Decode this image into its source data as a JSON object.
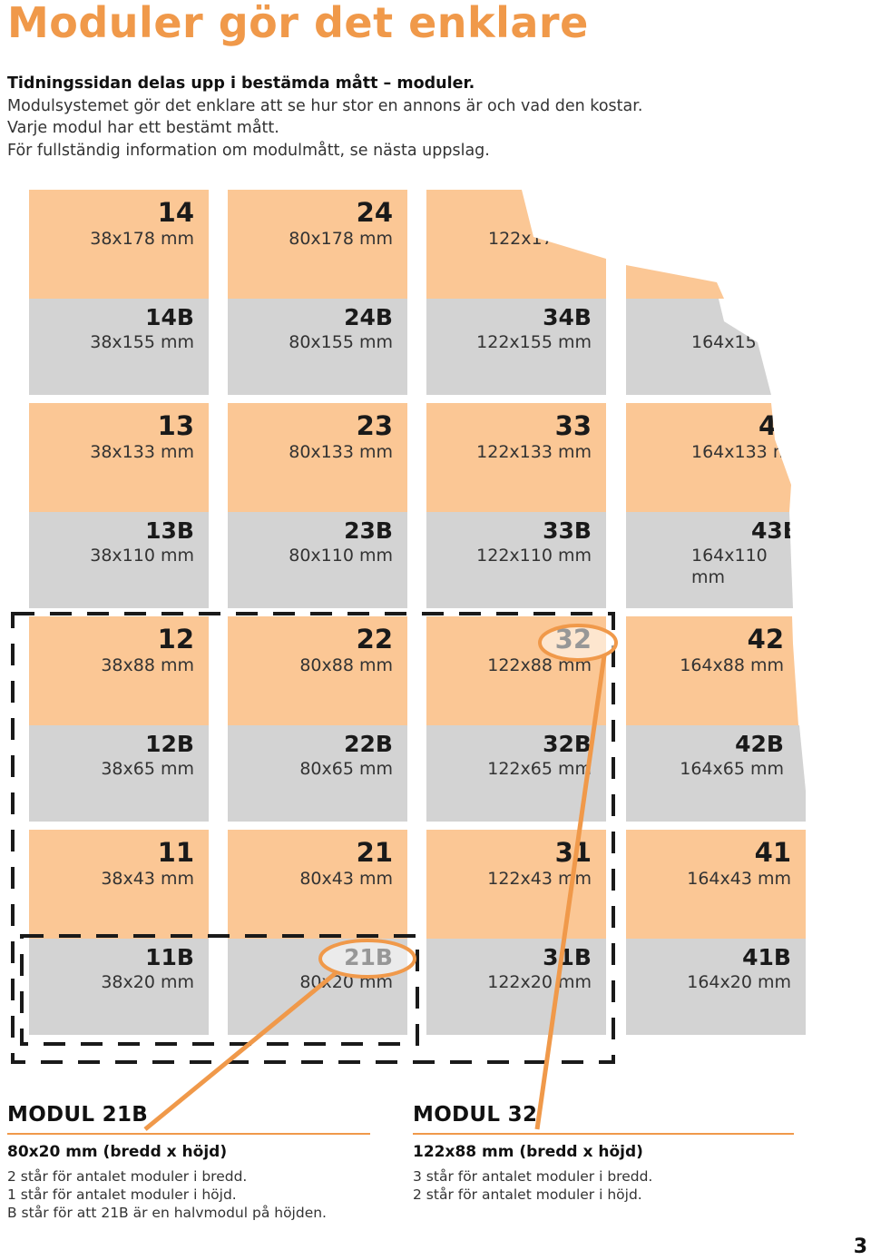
{
  "title": "Moduler gör det enklare",
  "intro": {
    "line1": "Tidningssidan delas upp i bestämda mått – moduler.",
    "line2": "Modulsystemet gör det enklare att se hur stor en annons är och vad den kostar.",
    "line3": "Varje modul har ett bestämt mått.",
    "line4": "För fullständig information om modulmått, se nästa uppslag."
  },
  "grid": {
    "r1": [
      {
        "num": "14",
        "dim": "38x178 mm"
      },
      {
        "num": "24",
        "dim": "80x178 mm"
      },
      {
        "num": "",
        "dim": "122x17"
      }
    ],
    "r1b": [
      {
        "num": "14B",
        "dim": "38x155 mm"
      },
      {
        "num": "24B",
        "dim": "80x155 mm"
      },
      {
        "num": "34B",
        "dim": "122x155 mm"
      },
      {
        "num": "",
        "dim": "164x15"
      }
    ],
    "r2": [
      {
        "num": "13",
        "dim": "38x133 mm"
      },
      {
        "num": "23",
        "dim": "80x133 mm"
      },
      {
        "num": "33",
        "dim": "122x133 mm"
      },
      {
        "num": "4",
        "dim": "164x133 m"
      }
    ],
    "r2b": [
      {
        "num": "13B",
        "dim": "38x110 mm"
      },
      {
        "num": "23B",
        "dim": "80x110 mm"
      },
      {
        "num": "33B",
        "dim": "122x110 mm"
      },
      {
        "num": "43B",
        "dim": "164x110 mm"
      }
    ],
    "r3": [
      {
        "num": "12",
        "dim": "38x88 mm"
      },
      {
        "num": "22",
        "dim": "80x88 mm"
      },
      {
        "num": "32",
        "dim": "122x88 mm"
      },
      {
        "num": "42",
        "dim": "164x88 mm"
      }
    ],
    "r3b": [
      {
        "num": "12B",
        "dim": "38x65 mm"
      },
      {
        "num": "22B",
        "dim": "80x65 mm"
      },
      {
        "num": "32B",
        "dim": "122x65 mm"
      },
      {
        "num": "42B",
        "dim": "164x65 mm"
      }
    ],
    "r4": [
      {
        "num": "11",
        "dim": "38x43 mm"
      },
      {
        "num": "21",
        "dim": "80x43 mm"
      },
      {
        "num": "31",
        "dim": "122x43 mm"
      },
      {
        "num": "41",
        "dim": "164x43 mm"
      }
    ],
    "r4b": [
      {
        "num": "11B",
        "dim": "38x20 mm"
      },
      {
        "num": "21B",
        "dim": "80x20 mm"
      },
      {
        "num": "31B",
        "dim": "122x20 mm"
      },
      {
        "num": "41B",
        "dim": "164x20 mm"
      }
    ]
  },
  "modul21b": {
    "heading": "MODUL 21B",
    "size": "80x20 mm (bredd x höjd)",
    "line1": "2 står för antalet moduler i bredd.",
    "line2": "1 står för antalet moduler i höjd.",
    "line3": "B står för att 21B är en halvmodul på höjden."
  },
  "modul32": {
    "heading": "MODUL 32",
    "size": "122x88 mm (bredd x höjd)",
    "line1": "3 står för antalet moduler i bredd.",
    "line2": "2 står för antalet moduler i höjd."
  },
  "page_number": "3",
  "colors": {
    "orange_cell": "#fbc795",
    "gray_cell": "#d3d3d3",
    "accent": "#f0994a"
  }
}
